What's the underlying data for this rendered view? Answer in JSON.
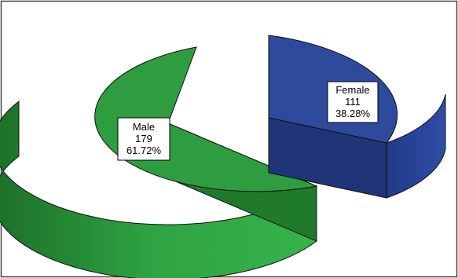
{
  "chart_data": {
    "type": "pie",
    "style": "3d-exploded",
    "legend": "none",
    "slices": [
      {
        "label": "Male",
        "count": "179",
        "percent": "61.72%",
        "value": 179,
        "color": "#2e9d3f",
        "side_color": "#1f7a2c"
      },
      {
        "label": "Female",
        "count": "111",
        "percent": "38.28%",
        "value": 111,
        "color": "#2d4a9c",
        "side_color": "#1f3577"
      }
    ]
  },
  "colors": {
    "border": "#444444",
    "background": "#ffffff"
  }
}
